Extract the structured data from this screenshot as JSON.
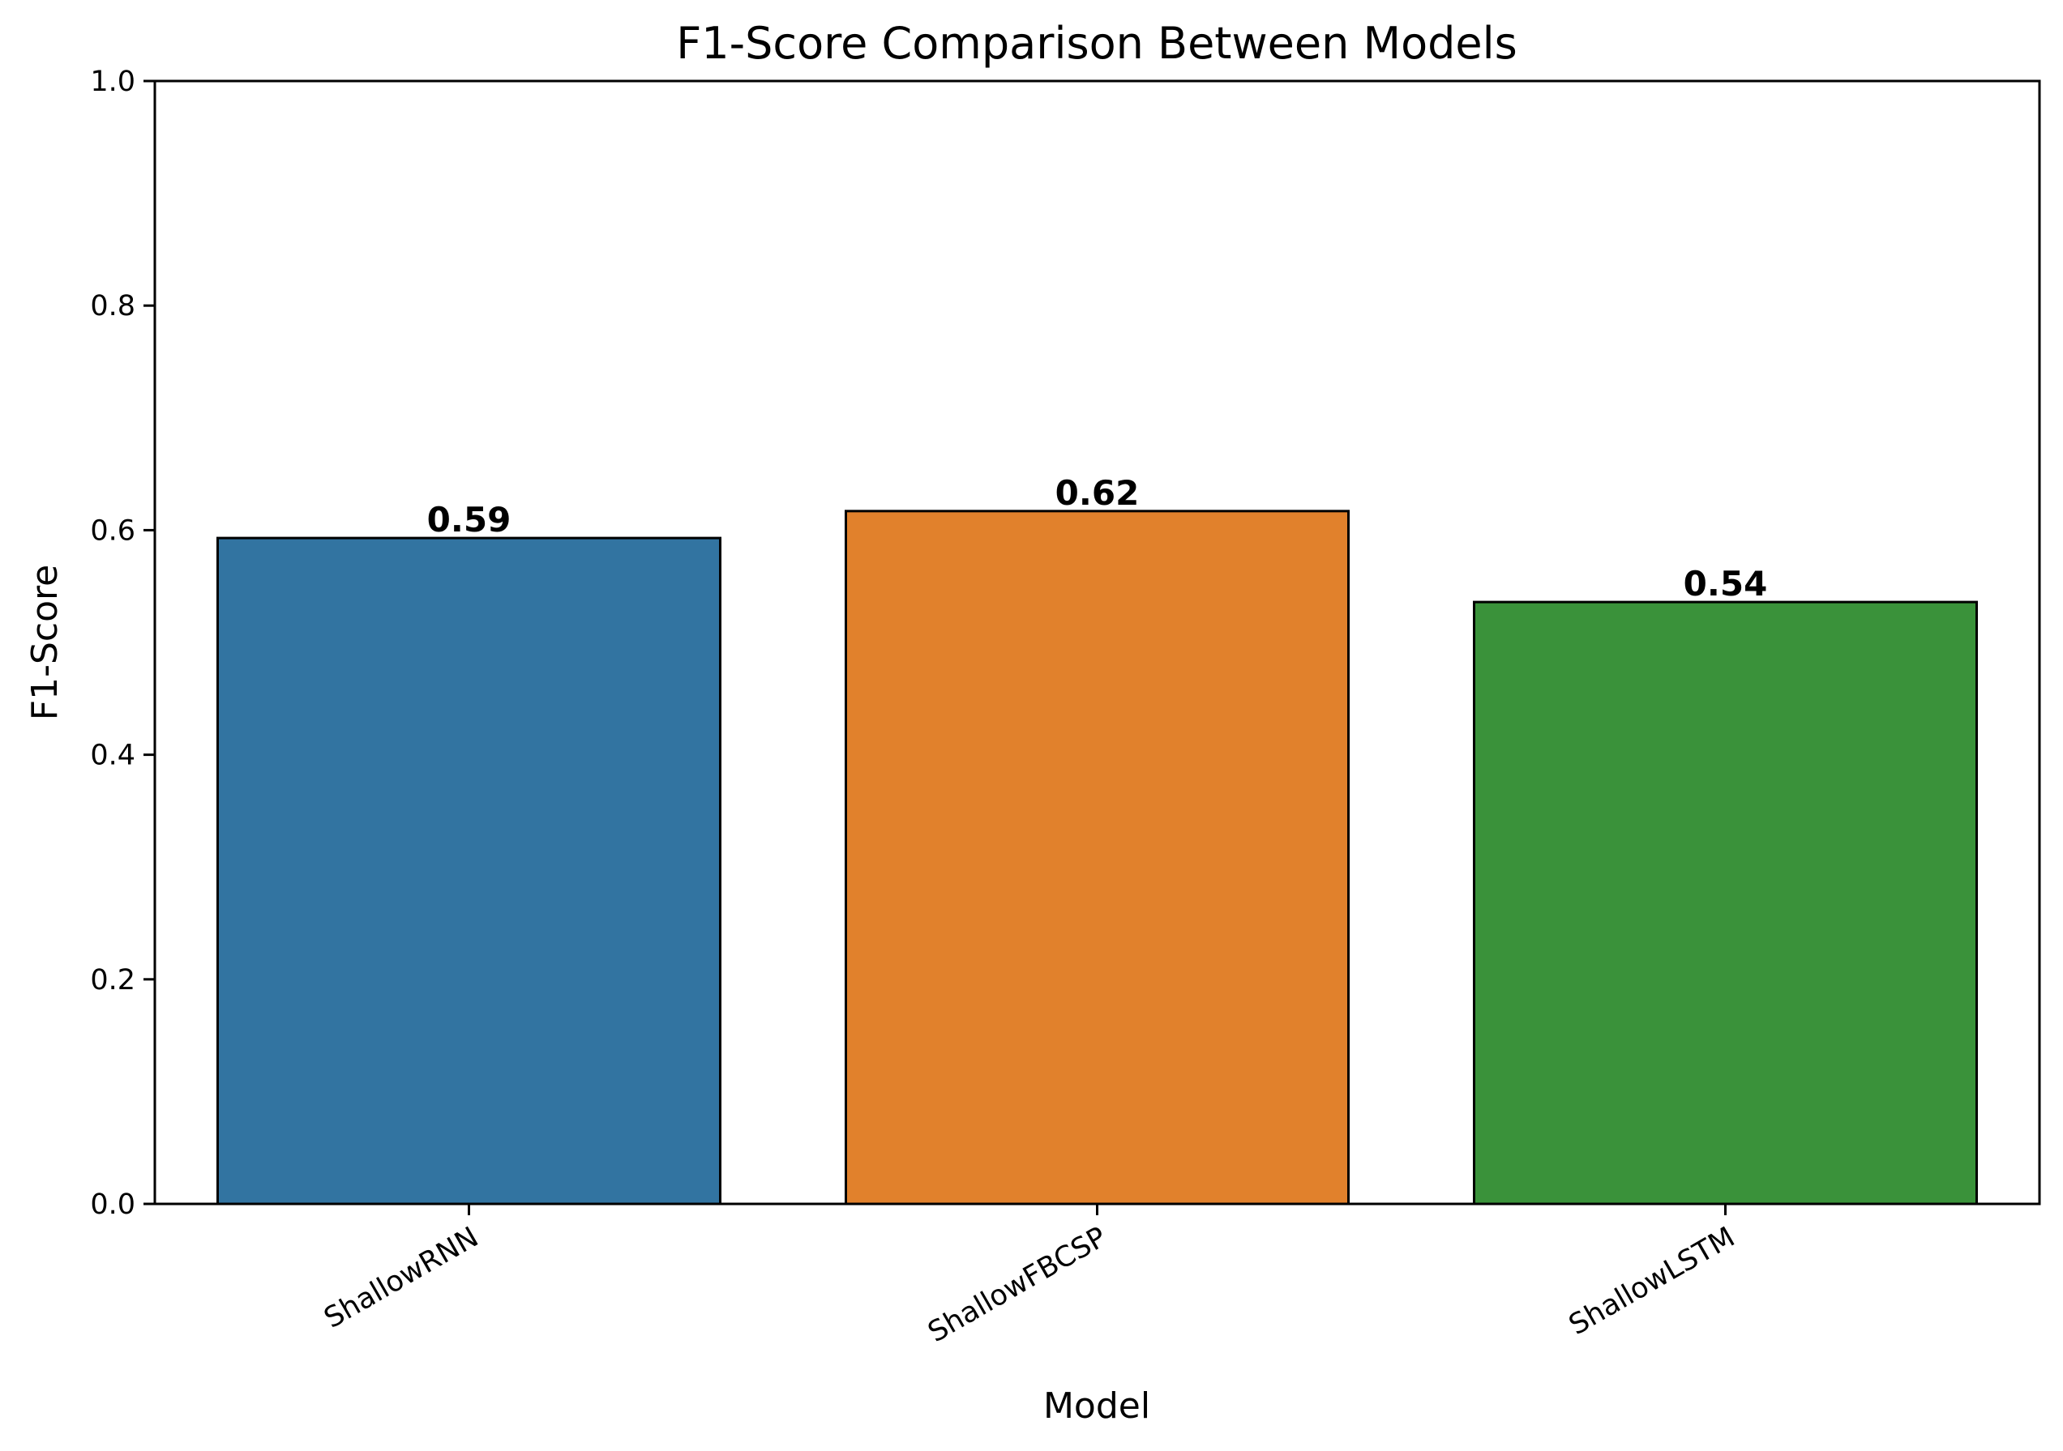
{
  "chart_data": {
    "type": "bar",
    "title": "F1-Score Comparison Between Models",
    "xlabel": "Model",
    "ylabel": "F1-Score",
    "categories": [
      "ShallowRNN",
      "ShallowFBCSP",
      "ShallowLSTM"
    ],
    "values": [
      0.593,
      0.617,
      0.536
    ],
    "data_labels": [
      "0.59",
      "0.62",
      "0.54"
    ],
    "colors": [
      "#3274a1",
      "#e1812c",
      "#3a923a"
    ],
    "ylim": [
      0,
      1.0
    ],
    "yticks": [
      0.0,
      0.2,
      0.4,
      0.6,
      0.8,
      1.0
    ],
    "ytick_labels": [
      "0.0",
      "0.2",
      "0.4",
      "0.6",
      "0.8",
      "1.0"
    ],
    "grid": false,
    "legend": "none"
  }
}
